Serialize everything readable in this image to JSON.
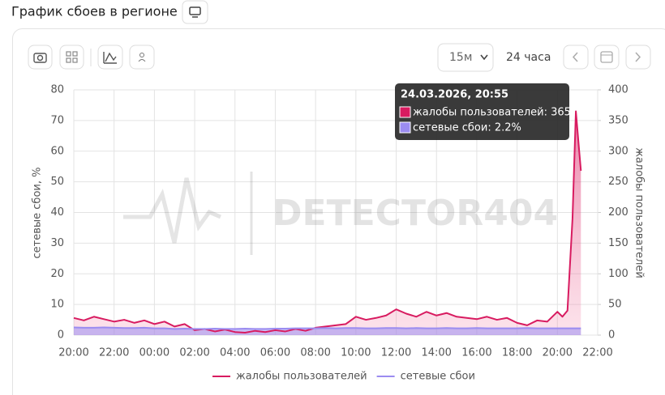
{
  "header": {
    "title": "График сбоев в регионе"
  },
  "toolbar": {
    "interval": "15м",
    "range": "24 часа"
  },
  "chart_data": {
    "type": "line",
    "watermark": "DETECTOR404",
    "y_label": "сетевые сбои, %",
    "y2_label": "жалобы пользователей",
    "x": [
      0,
      0.5,
      1,
      1.5,
      2,
      2.5,
      3,
      3.5,
      4,
      4.5,
      5,
      5.5,
      6,
      6.5,
      7,
      7.5,
      8,
      8.5,
      9,
      9.5,
      10,
      10.5,
      11,
      11.5,
      12,
      12.5,
      13,
      13.5,
      14,
      14.5,
      15,
      15.5,
      16,
      16.5,
      17,
      17.5,
      18,
      18.5,
      19,
      19.5,
      20,
      20.5,
      21,
      21.5,
      22,
      22.5,
      23,
      23.5,
      24,
      24.25,
      24.5,
      24.75,
      24.917,
      25.083,
      25.167
    ],
    "xlim": [
      0,
      26
    ],
    "xticks": [
      {
        "value": 0,
        "label": "20:00"
      },
      {
        "value": 2,
        "label": "22:00"
      },
      {
        "value": 4,
        "label": "00:00"
      },
      {
        "value": 6,
        "label": "02:00"
      },
      {
        "value": 8,
        "label": "04:00"
      },
      {
        "value": 10,
        "label": "06:00"
      },
      {
        "value": 12,
        "label": "08:00"
      },
      {
        "value": 14,
        "label": "10:00"
      },
      {
        "value": 16,
        "label": "12:00"
      },
      {
        "value": 18,
        "label": "14:00"
      },
      {
        "value": 20,
        "label": "16:00"
      },
      {
        "value": 22,
        "label": "18:00"
      },
      {
        "value": 24,
        "label": "20:00"
      },
      {
        "value": 26,
        "label": "22:00"
      }
    ],
    "ylim": [
      0,
      80
    ],
    "yticks": [
      0,
      10,
      20,
      30,
      40,
      50,
      60,
      70,
      80
    ],
    "y2lim": [
      0,
      400
    ],
    "y2ticks": [
      0,
      50,
      100,
      150,
      200,
      250,
      300,
      350,
      400
    ],
    "grid": true,
    "series": [
      {
        "name": "жалобы пользователей",
        "color": "#d81b60",
        "axis": "y2",
        "values": [
          28,
          24,
          30,
          26,
          22,
          25,
          20,
          24,
          18,
          22,
          14,
          18,
          8,
          10,
          6,
          9,
          5,
          4,
          7,
          5,
          8,
          6,
          10,
          7,
          12,
          14,
          16,
          18,
          30,
          25,
          28,
          32,
          42,
          35,
          30,
          38,
          32,
          36,
          30,
          28,
          26,
          30,
          25,
          28,
          20,
          16,
          24,
          22,
          38,
          30,
          40,
          190,
          365,
          300,
          268
        ]
      },
      {
        "name": "сетевые сбои",
        "color": "#9b8cf0",
        "values": [
          2.5,
          2.4,
          2.4,
          2.5,
          2.4,
          2.3,
          2.3,
          2.4,
          2.2,
          2.2,
          2.0,
          2.1,
          2.0,
          2.0,
          2.1,
          2.0,
          2.0,
          2.1,
          2.0,
          2.0,
          2.1,
          2.1,
          2.2,
          2.2,
          2.2,
          2.3,
          2.2,
          2.3,
          2.3,
          2.2,
          2.2,
          2.3,
          2.3,
          2.2,
          2.3,
          2.2,
          2.2,
          2.3,
          2.2,
          2.2,
          2.3,
          2.2,
          2.2,
          2.2,
          2.2,
          2.3,
          2.2,
          2.2,
          2.2,
          2.2,
          2.2,
          2.2,
          2.2,
          2.2,
          2.2
        ]
      }
    ],
    "tooltip": {
      "title": "24.03.2026, 20:55",
      "items": [
        "жалобы пользователей: 365",
        "сетевые сбои: 2.2%"
      ]
    }
  }
}
